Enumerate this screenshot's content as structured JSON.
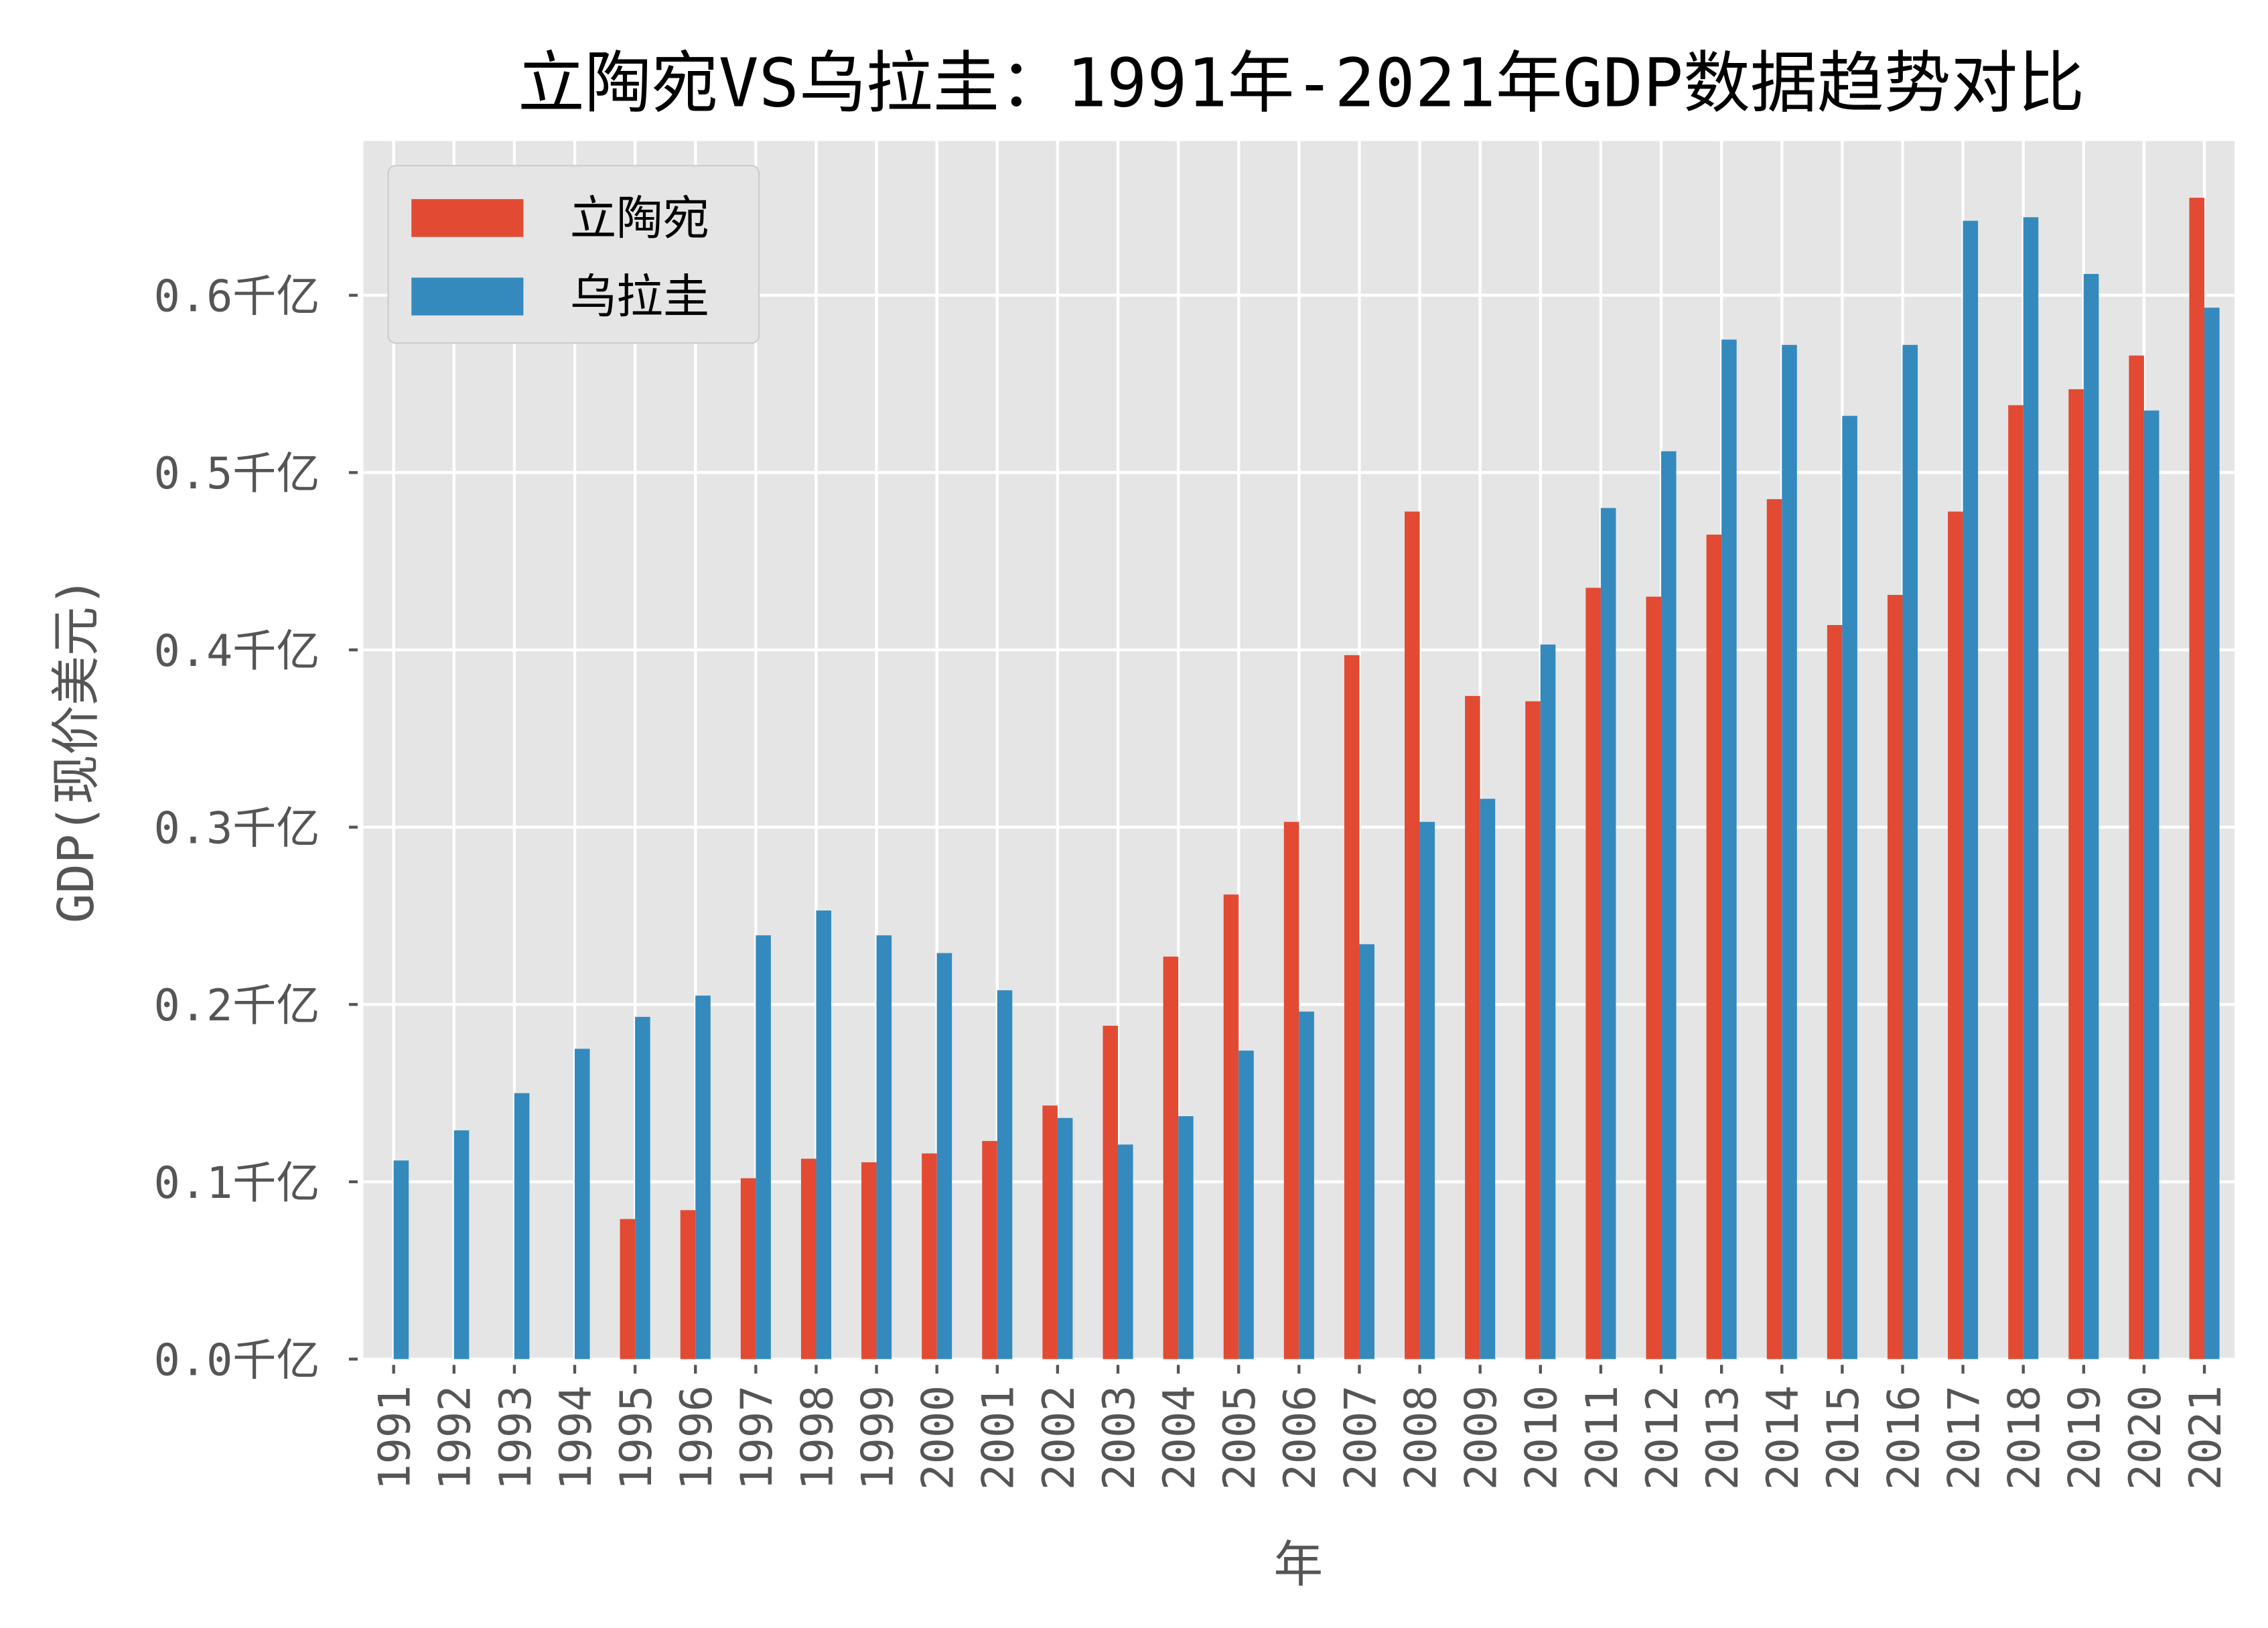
{
  "chart_data": {
    "type": "bar",
    "title": "立陶宛VS乌拉圭：1991年-2021年GDP数据趋势对比",
    "xlabel": "年",
    "ylabel": "GDP(现价美元)",
    "ylim": [
      0,
      0.687
    ],
    "yticks": [
      0.0,
      0.1,
      0.2,
      0.3,
      0.4,
      0.5,
      0.6
    ],
    "ytick_labels": [
      "0.0千亿",
      "0.1千亿",
      "0.2千亿",
      "0.3千亿",
      "0.4千亿",
      "0.5千亿",
      "0.6千亿"
    ],
    "grid": true,
    "legend_position": "top-left",
    "categories": [
      "1991",
      "1992",
      "1993",
      "1994",
      "1995",
      "1996",
      "1997",
      "1998",
      "1999",
      "2000",
      "2001",
      "2002",
      "2003",
      "2004",
      "2005",
      "2006",
      "2007",
      "2008",
      "2009",
      "2010",
      "2011",
      "2012",
      "2013",
      "2014",
      "2015",
      "2016",
      "2017",
      "2018",
      "2019",
      "2020",
      "2021"
    ],
    "series": [
      {
        "name": "立陶宛",
        "color": "#E24A33",
        "values": [
          null,
          null,
          null,
          null,
          0.079,
          0.084,
          0.102,
          0.113,
          0.111,
          0.116,
          0.123,
          0.143,
          0.188,
          0.227,
          0.262,
          0.303,
          0.397,
          0.478,
          0.374,
          0.371,
          0.435,
          0.43,
          0.465,
          0.485,
          0.414,
          0.431,
          0.478,
          0.538,
          0.547,
          0.566,
          0.655
        ]
      },
      {
        "name": "乌拉圭",
        "color": "#348ABD",
        "values": [
          0.112,
          0.129,
          0.15,
          0.175,
          0.193,
          0.205,
          0.239,
          0.253,
          0.239,
          0.229,
          0.208,
          0.136,
          0.121,
          0.137,
          0.174,
          0.196,
          0.234,
          0.303,
          0.316,
          0.403,
          0.48,
          0.512,
          0.575,
          0.572,
          0.532,
          0.572,
          0.642,
          0.644,
          0.612,
          0.535,
          0.593
        ]
      }
    ]
  }
}
